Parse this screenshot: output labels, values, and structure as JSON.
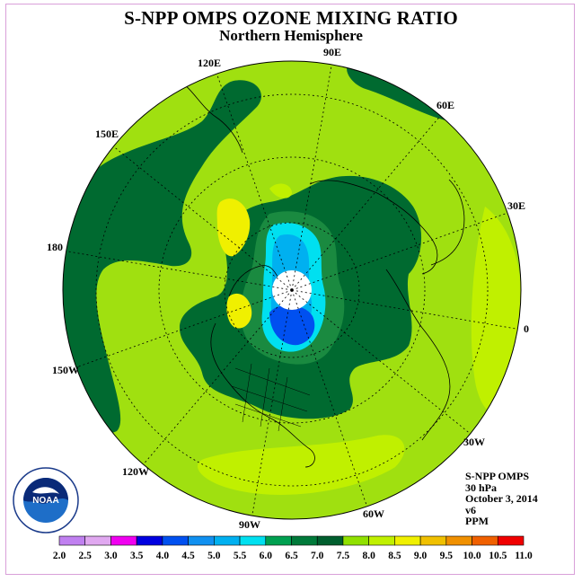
{
  "title": "S-NPP OMPS OZONE MIXING RATIO",
  "subtitle": "Northern Hemisphere",
  "longitude_labels": [
    "90E",
    "60E",
    "30E",
    "0",
    "30W",
    "60W",
    "90W",
    "120W",
    "150W",
    "180",
    "150E",
    "120E"
  ],
  "info": {
    "instrument": "S-NPP OMPS",
    "pressure": "30 hPa",
    "date": "October 3, 2014",
    "version": "v6",
    "units": "PPM"
  },
  "logo_text": "NOAA",
  "colorbar": {
    "ticks": [
      "2.0",
      "2.5",
      "3.0",
      "3.5",
      "4.0",
      "4.5",
      "5.0",
      "5.5",
      "6.0",
      "6.5",
      "7.0",
      "7.5",
      "8.0",
      "8.5",
      "9.0",
      "9.5",
      "10.0",
      "10.5",
      "11.0"
    ],
    "colors": [
      "#c080f0",
      "#e0a8f0",
      "#f000f0",
      "#0000e0",
      "#0050f0",
      "#1090f0",
      "#00b0f0",
      "#00e0f0",
      "#00a050",
      "#007a3a",
      "#005e2e",
      "#90e000",
      "#c0f000",
      "#f0f000",
      "#f0c000",
      "#f09000",
      "#f06000",
      "#f00000",
      "#a05030"
    ]
  },
  "colors": {
    "background_level": "#a0e010",
    "dark_band": "#006a30",
    "mid_band": "#1a8a40",
    "pole_cap": "#ffffff"
  }
}
